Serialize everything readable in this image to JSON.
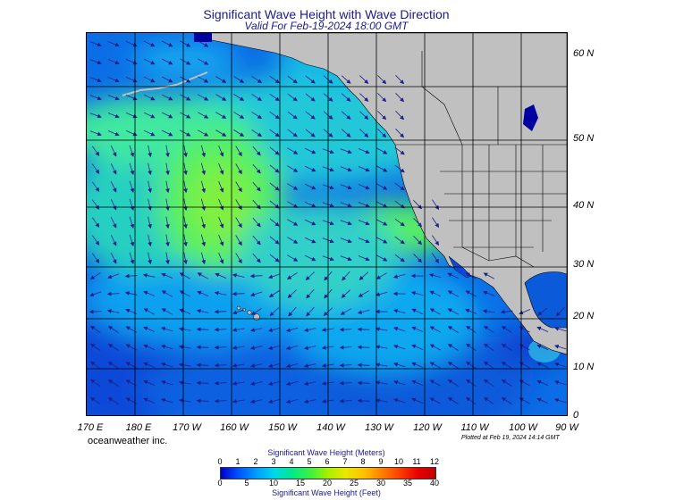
{
  "title": "Significant Wave Height with Wave Direction",
  "subtitle": "Valid For Feb-19-2024 18:00 GMT",
  "lat_labels": [
    "60 N",
    "50 N",
    "40 N",
    "30 N",
    "20 N",
    "10 N",
    "0"
  ],
  "lon_labels": [
    "170 E",
    "180 E",
    "170 W",
    "160 W",
    "150 W",
    "140 W",
    "130 W",
    "120 W",
    "110 W",
    "100 W",
    "90 W"
  ],
  "brand": "oceanweather inc.",
  "plotted_note": "Plotted at Feb 19, 2024 14:14 GMT",
  "colorbar": {
    "meters_title": "Significant Wave Height (Meters)",
    "meters_ticks": [
      "0",
      "1",
      "2",
      "3",
      "4",
      "5",
      "6",
      "7",
      "8",
      "9",
      "10",
      "11",
      "12"
    ],
    "feet_title": "Significant Wave Height (Feet)",
    "feet_ticks": [
      "0",
      "5",
      "10",
      "15",
      "20",
      "25",
      "30",
      "35",
      "40"
    ]
  },
  "colors": {
    "title": "#1a1a8c",
    "land": "#c0c0c0",
    "arrow": "#1e1e8c",
    "deep_blue": "#0000c8",
    "mid_blue": "#0c6ee6",
    "cyan": "#00d8e8",
    "green": "#40f040"
  }
}
